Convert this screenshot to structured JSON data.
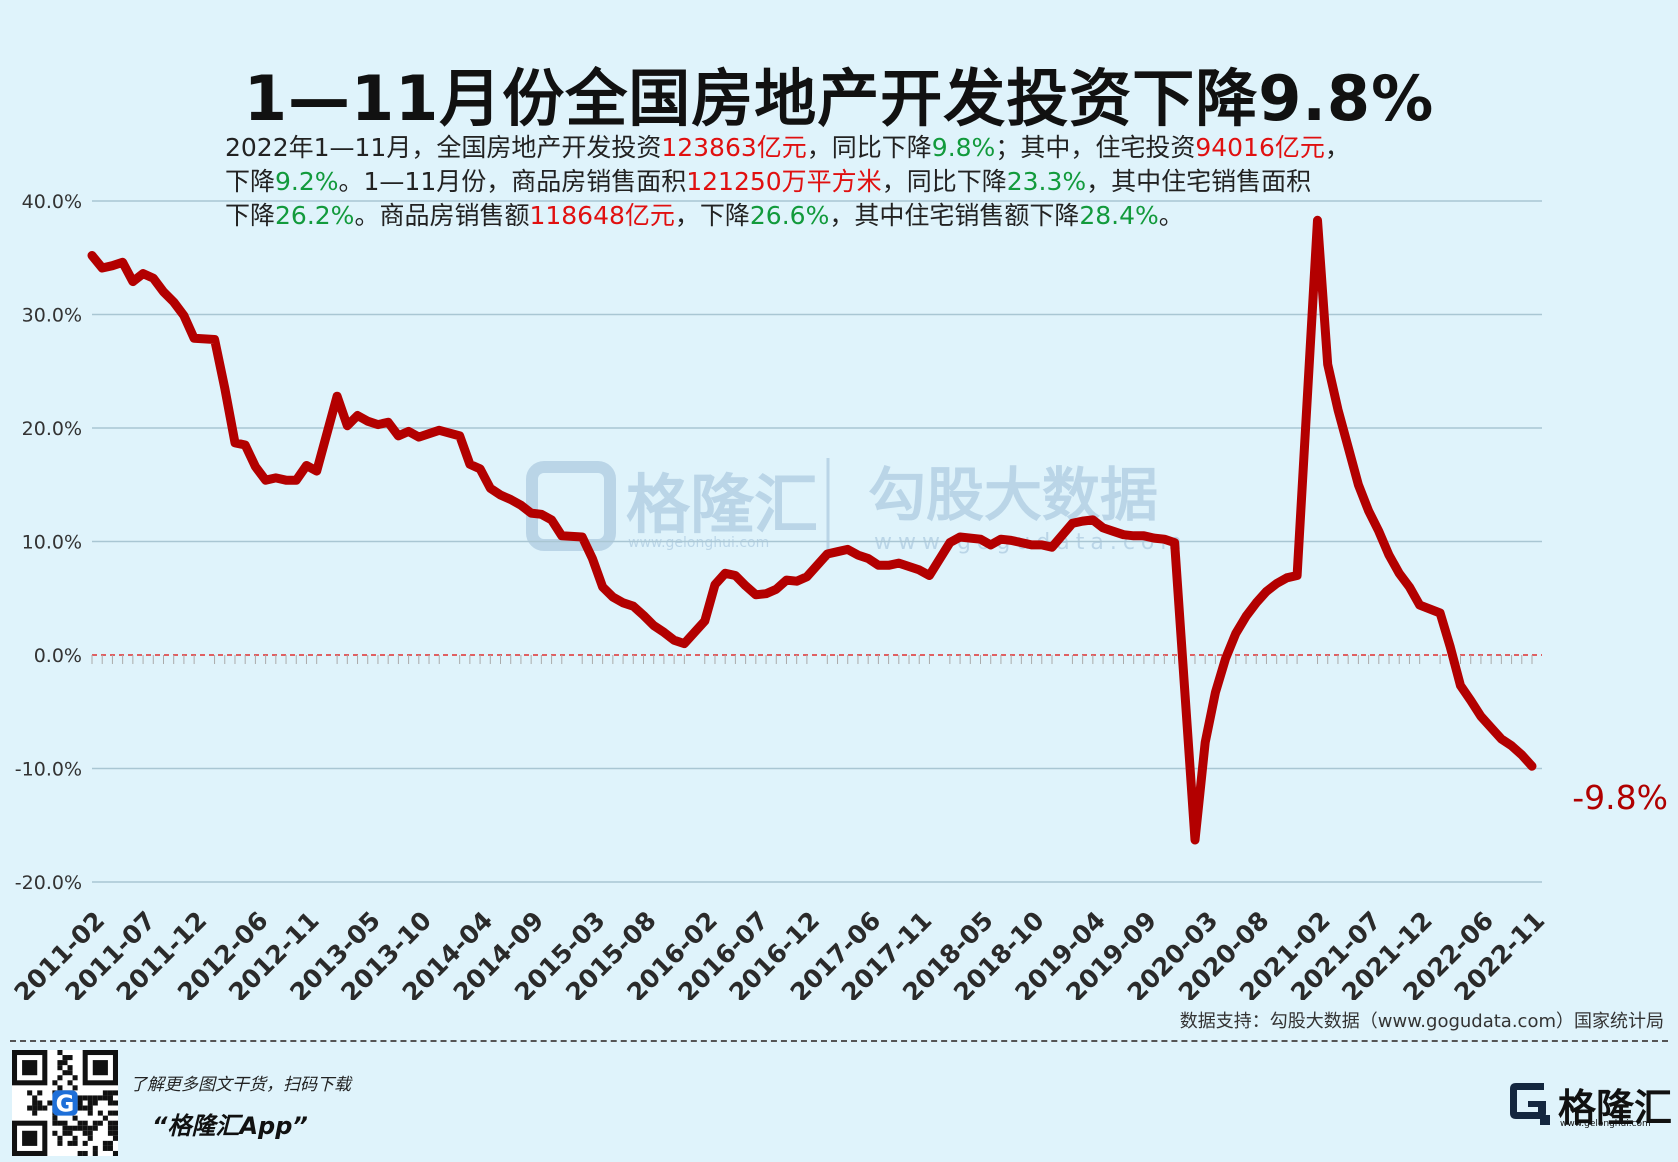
{
  "title": "1—11月份全国房地产开发投资下降9.8%",
  "summary": {
    "line1": [
      {
        "t": "2022年1—11月，全国房地产开发投资",
        "c": ""
      },
      {
        "t": "123863亿元",
        "c": "red"
      },
      {
        "t": "，同比下降",
        "c": ""
      },
      {
        "t": "9.8%",
        "c": "green"
      },
      {
        "t": "；其中，住宅投资",
        "c": ""
      },
      {
        "t": "94016亿元",
        "c": "red"
      },
      {
        "t": "，",
        "c": ""
      }
    ],
    "line2": [
      {
        "t": "下降",
        "c": ""
      },
      {
        "t": "9.2%",
        "c": "green"
      },
      {
        "t": "。1—11月份，商品房销售面积",
        "c": ""
      },
      {
        "t": "121250万平方米",
        "c": "red"
      },
      {
        "t": "，同比下降",
        "c": ""
      },
      {
        "t": "23.3%",
        "c": "green"
      },
      {
        "t": "，其中住宅销售面积",
        "c": ""
      }
    ],
    "line3": [
      {
        "t": "下降",
        "c": ""
      },
      {
        "t": "26.2%",
        "c": "green"
      },
      {
        "t": "。商品房销售额",
        "c": ""
      },
      {
        "t": "118648亿元",
        "c": "red"
      },
      {
        "t": "，下降",
        "c": ""
      },
      {
        "t": "26.6%",
        "c": "green"
      },
      {
        "t": "，其中住宅销售额下降",
        "c": ""
      },
      {
        "t": "28.4%",
        "c": "green"
      },
      {
        "t": "。",
        "c": ""
      }
    ]
  },
  "watermark": {
    "brand": "格隆汇",
    "brand_url": "www.gelonghui.com",
    "data_brand": "勾股大数据",
    "data_url": "www.gogudata.com"
  },
  "source": "数据支持：勾股大数据（www.gogudata.com）国家统计局",
  "footer": {
    "promo": "了解更多图文干货，扫码下载",
    "app": "“格隆汇App”",
    "logo_text": "格隆汇",
    "logo_url": "www.gelonghui.com"
  },
  "colors": {
    "line": "#b30000",
    "zero_line": "#e03030",
    "grid": "#a9c6d3",
    "background": "#dff3fb",
    "highlight_red": "#e01010",
    "highlight_green": "#129a3c"
  },
  "chart_data": {
    "type": "line",
    "ylim": [
      -20,
      40
    ],
    "yticks": [
      "40.0%",
      "30.0%",
      "20.0%",
      "10.0%",
      "0.0%",
      "-10.0%",
      "-20.0%"
    ],
    "ytick_values": [
      40,
      30,
      20,
      10,
      0,
      -10,
      -20
    ],
    "xtick_labels": [
      "2011-02",
      "2011-07",
      "2011-12",
      "2012-06",
      "2012-11",
      "2013-05",
      "2013-10",
      "2014-04",
      "2014-09",
      "2015-03",
      "2015-08",
      "2016-02",
      "2016-07",
      "2016-12",
      "2017-06",
      "2017-11",
      "2018-05",
      "2018-10",
      "2019-04",
      "2019-09",
      "2020-03",
      "2020-08",
      "2021-02",
      "2021-07",
      "2021-12",
      "2022-06",
      "2022-11"
    ],
    "reference_line": 0,
    "end_label": "-9.8%",
    "grid": true,
    "series": [
      {
        "x": [
          "2011-02",
          "2011-03",
          "2011-04",
          "2011-05",
          "2011-06",
          "2011-07",
          "2011-08",
          "2011-09",
          "2011-10",
          "2011-11",
          "2011-12",
          "2012-02",
          "2012-03",
          "2012-04",
          "2012-05",
          "2012-06",
          "2012-07",
          "2012-08",
          "2012-09",
          "2012-10",
          "2012-11",
          "2012-12",
          "2013-02",
          "2013-03",
          "2013-04",
          "2013-05",
          "2013-06",
          "2013-07",
          "2013-08",
          "2013-09",
          "2013-10",
          "2013-11",
          "2013-12",
          "2014-02",
          "2014-03",
          "2014-04",
          "2014-05",
          "2014-06",
          "2014-07",
          "2014-08",
          "2014-09",
          "2014-10",
          "2014-11",
          "2014-12",
          "2015-02",
          "2015-03",
          "2015-04",
          "2015-05",
          "2015-06",
          "2015-07",
          "2015-08",
          "2015-09",
          "2015-10",
          "2015-11",
          "2015-12",
          "2016-02",
          "2016-03",
          "2016-04",
          "2016-05",
          "2016-06",
          "2016-07",
          "2016-08",
          "2016-09",
          "2016-10",
          "2016-11",
          "2016-12",
          "2017-02",
          "2017-03",
          "2017-04",
          "2017-05",
          "2017-06",
          "2017-07",
          "2017-08",
          "2017-09",
          "2017-10",
          "2017-11",
          "2017-12",
          "2018-02",
          "2018-03",
          "2018-04",
          "2018-05",
          "2018-06",
          "2018-07",
          "2018-08",
          "2018-09",
          "2018-10",
          "2018-11",
          "2018-12",
          "2019-02",
          "2019-03",
          "2019-04",
          "2019-05",
          "2019-06",
          "2019-07",
          "2019-08",
          "2019-09",
          "2019-10",
          "2019-11",
          "2019-12",
          "2020-02",
          "2020-03",
          "2020-04",
          "2020-05",
          "2020-06",
          "2020-07",
          "2020-08",
          "2020-09",
          "2020-10",
          "2020-11",
          "2020-12",
          "2021-02",
          "2021-03",
          "2021-04",
          "2021-05",
          "2021-06",
          "2021-07",
          "2021-08",
          "2021-09",
          "2021-10",
          "2021-11",
          "2021-12",
          "2022-02",
          "2022-03",
          "2022-04",
          "2022-05",
          "2022-06",
          "2022-07",
          "2022-08",
          "2022-09",
          "2022-10",
          "2022-11"
        ],
        "values": [
          35.2,
          34.1,
          34.3,
          34.6,
          32.9,
          33.6,
          33.2,
          32.0,
          31.1,
          29.9,
          27.9,
          27.8,
          23.5,
          18.7,
          18.5,
          16.6,
          15.4,
          15.6,
          15.4,
          15.4,
          16.7,
          16.2,
          22.8,
          20.2,
          21.1,
          20.6,
          20.3,
          20.5,
          19.3,
          19.7,
          19.2,
          19.5,
          19.8,
          19.3,
          16.8,
          16.4,
          14.7,
          14.1,
          13.7,
          13.2,
          12.5,
          12.4,
          11.9,
          10.5,
          10.4,
          8.5,
          6.0,
          5.1,
          4.6,
          4.3,
          3.5,
          2.6,
          2.0,
          1.3,
          1.0,
          3.0,
          6.2,
          7.2,
          7.0,
          6.1,
          5.3,
          5.4,
          5.8,
          6.6,
          6.5,
          6.9,
          8.9,
          9.1,
          9.3,
          8.8,
          8.5,
          7.9,
          7.9,
          8.1,
          7.8,
          7.5,
          7.0,
          9.9,
          10.4,
          10.3,
          10.2,
          9.7,
          10.2,
          10.1,
          9.9,
          9.7,
          9.7,
          9.5,
          11.6,
          11.8,
          11.9,
          11.2,
          10.9,
          10.6,
          10.5,
          10.5,
          10.3,
          10.2,
          9.9,
          -16.3,
          -7.7,
          -3.3,
          -0.3,
          1.9,
          3.4,
          4.6,
          5.6,
          6.3,
          6.8,
          7.0,
          38.3,
          25.6,
          21.6,
          18.3,
          15.0,
          12.7,
          10.9,
          8.8,
          7.2,
          6.0,
          4.4,
          3.7,
          0.7,
          -2.7,
          -4.0,
          -5.4,
          -6.4,
          -7.4,
          -8.0,
          -8.8,
          -9.8
        ]
      }
    ]
  }
}
